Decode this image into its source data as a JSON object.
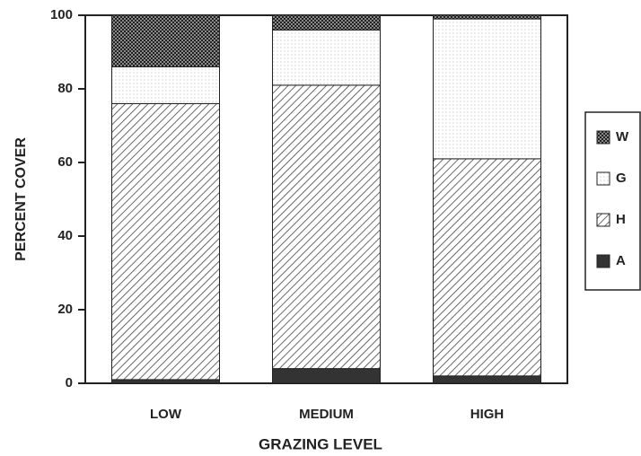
{
  "chart_data": {
    "type": "stacked_bar",
    "xlabel": "GRAZING LEVEL",
    "ylabel": "PERCENT COVER",
    "categories": [
      "LOW",
      "MEDIUM",
      "HIGH"
    ],
    "series": [
      {
        "name": "A",
        "color": "#333333",
        "pattern": "solid",
        "values": [
          1,
          4,
          2
        ]
      },
      {
        "name": "H",
        "color": "#444444",
        "pattern": "diagonal",
        "values": [
          75,
          77,
          59
        ]
      },
      {
        "name": "G",
        "color": "#cccccc",
        "pattern": "dotted",
        "values": [
          10,
          15,
          38
        ]
      },
      {
        "name": "W",
        "color": "#333333",
        "pattern": "crosshatch",
        "values": [
          14,
          4,
          1
        ]
      }
    ],
    "ylim": [
      0,
      100
    ],
    "yticks": [
      0,
      20,
      40,
      60,
      80,
      100
    ],
    "legend": "right"
  }
}
